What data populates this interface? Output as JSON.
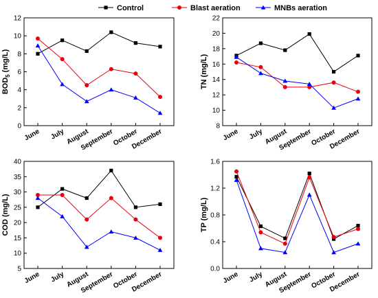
{
  "legend": [
    {
      "name": "Control",
      "color": "#000000",
      "marker": "square"
    },
    {
      "name": "Blast aeration",
      "color": "#e8000b",
      "marker": "circle"
    },
    {
      "name": "MNBs aeration",
      "color": "#0000ff",
      "marker": "triangle"
    }
  ],
  "chart_data": [
    {
      "type": "line",
      "categories": [
        "June",
        "July",
        "August",
        "September",
        "October",
        "December"
      ],
      "ylabel_main": "BOD",
      "ylabel_sub": "5",
      "ylabel_unit": " (mg/L)",
      "ylim": [
        0,
        12
      ],
      "yticks": [
        0,
        2,
        4,
        6,
        8,
        10,
        12
      ],
      "series": [
        {
          "name": "Control",
          "values": [
            8.0,
            9.5,
            8.3,
            10.4,
            9.2,
            8.8
          ]
        },
        {
          "name": "Blast aeration",
          "values": [
            9.7,
            7.4,
            4.5,
            6.3,
            5.8,
            3.2
          ]
        },
        {
          "name": "MNBs aeration",
          "values": [
            8.9,
            4.6,
            2.7,
            4.0,
            3.1,
            1.4
          ]
        }
      ]
    },
    {
      "type": "line",
      "categories": [
        "June",
        "July",
        "August",
        "September",
        "October",
        "December"
      ],
      "ylabel": "TN (mg/L)",
      "ylim": [
        8,
        22
      ],
      "yticks": [
        8,
        10,
        12,
        14,
        16,
        18,
        20,
        22
      ],
      "series": [
        {
          "name": "Control",
          "values": [
            17.1,
            18.7,
            17.8,
            19.9,
            15.0,
            17.1
          ]
        },
        {
          "name": "Blast aeration",
          "values": [
            16.2,
            15.6,
            13.0,
            13.0,
            13.6,
            12.4
          ]
        },
        {
          "name": "MNBs aeration",
          "values": [
            16.9,
            14.8,
            13.8,
            13.4,
            10.3,
            11.5
          ]
        }
      ]
    },
    {
      "type": "line",
      "categories": [
        "June",
        "July",
        "August",
        "September",
        "October",
        "December"
      ],
      "ylabel": "COD (mg/L)",
      "ylim": [
        5,
        40
      ],
      "yticks": [
        5,
        10,
        15,
        20,
        25,
        30,
        35,
        40
      ],
      "series": [
        {
          "name": "Control",
          "values": [
            25,
            31,
            28,
            37,
            25,
            26
          ]
        },
        {
          "name": "Blast aeration",
          "values": [
            29,
            29,
            21,
            28,
            21,
            15
          ]
        },
        {
          "name": "MNBs aeration",
          "values": [
            28,
            22,
            12,
            17,
            15,
            11
          ]
        }
      ]
    },
    {
      "type": "line",
      "categories": [
        "June",
        "July",
        "August",
        "September",
        "October",
        "December"
      ],
      "ylabel": "TP (mg/L)",
      "ylim": [
        0.0,
        1.6
      ],
      "yticks": [
        0.0,
        0.4,
        0.8,
        1.2,
        1.6
      ],
      "ytick_labels": [
        "0.0",
        "0.4",
        "0.8",
        "1.2",
        "1.6"
      ],
      "series": [
        {
          "name": "Control",
          "values": [
            1.37,
            0.63,
            0.45,
            1.42,
            0.44,
            0.64
          ]
        },
        {
          "name": "Blast aeration",
          "values": [
            1.45,
            0.54,
            0.37,
            1.36,
            0.47,
            0.59
          ]
        },
        {
          "name": "MNBs aeration",
          "values": [
            1.32,
            0.3,
            0.24,
            1.1,
            0.24,
            0.37
          ]
        }
      ]
    }
  ]
}
